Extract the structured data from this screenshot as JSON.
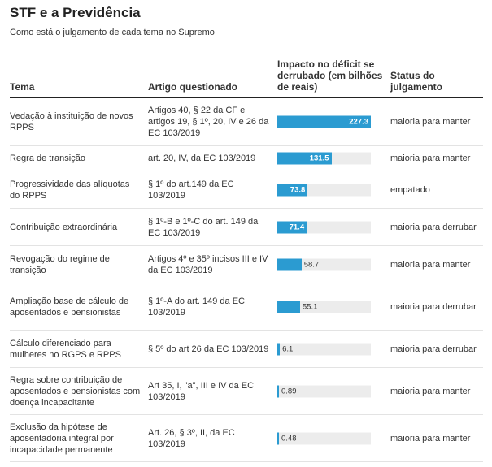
{
  "header": {
    "title": "STF e a Previdência",
    "subtitle": "Como está o julgamento de cada tema no Supremo"
  },
  "columns": {
    "tema": "Tema",
    "artigo": "Artigo questionado",
    "impacto": "Impacto no déficit se derrubado (em bilhões de reais)",
    "status": "Status do julgamento"
  },
  "rows": [
    {
      "tema": "Vedação à instituição de novos RPPS",
      "artigo": "Artigos 40, § 22 da CF e artigos 19, § 1º, 20, IV e 26 da EC 103/2019",
      "valor_label": "227.3",
      "status": "maioria para manter"
    },
    {
      "tema": "Regra de transição",
      "artigo": "art. 20, IV, da EC 103/2019",
      "valor_label": "131.5",
      "status": "maioria para manter"
    },
    {
      "tema": "Progressividade das alíquotas do RPPS",
      "artigo": "§ 1º do art.149 da EC 103/2019",
      "valor_label": "73.8",
      "status": "empatado"
    },
    {
      "tema": "Contribuição extraordinária",
      "artigo": "§ 1º-B e 1º-C do art. 149 da EC 103/2019",
      "valor_label": "71.4",
      "status": "maioria para derrubar"
    },
    {
      "tema": "Revogação do regime de transição",
      "artigo": "Artigos 4º e 35º incisos III e IV da EC 103/2019",
      "valor_label": "58.7",
      "status": "maioria para manter"
    },
    {
      "tema": "Ampliação base de cálculo de aposentados e pensionistas",
      "artigo": "§ 1º-A do art. 149 da EC 103/2019",
      "valor_label": "55.1",
      "status": "maioria para derrubar"
    },
    {
      "tema": "Cálculo diferenciado para mulheres no RGPS e RPPS",
      "artigo": "§ 5º do art 26 da EC 103/2019",
      "valor_label": "6.1",
      "status": "maioria para derrubar"
    },
    {
      "tema": "Regra sobre contribuição de aposentados e pensionistas com doença incapacitante",
      "artigo": "Art 35, I, \"a\", III e IV da EC 103/2019",
      "valor_label": "0.89",
      "status": "maioria para manter"
    },
    {
      "tema": "Exclusão da hipótese de aposentadoria integral por incapacidade permanente",
      "artigo": "Art. 26, § 3º, II, da EC 103/2019",
      "valor_label": "0.48",
      "status": "maioria para manter"
    }
  ],
  "chart_data": {
    "type": "bar",
    "orientation": "horizontal",
    "categories": [
      "Vedação à instituição de novos RPPS",
      "Regra de transição",
      "Progressividade das alíquotas do RPPS",
      "Contribuição extraordinária",
      "Revogação do regime de transição",
      "Ampliação base de cálculo de aposentados e pensionistas",
      "Cálculo diferenciado para mulheres no RGPS e RPPS",
      "Regra sobre contribuição de aposentados e pensionistas com doença incapacitante",
      "Exclusão da hipótese de aposentadoria integral por incapacidade permanente"
    ],
    "values": [
      227.3,
      131.5,
      73.8,
      71.4,
      58.7,
      55.1,
      6.1,
      0.89,
      0.48
    ],
    "xlim": [
      0,
      227.3
    ],
    "bar_color": "#2b9bd1",
    "track_color": "#ececec",
    "grid": false
  }
}
